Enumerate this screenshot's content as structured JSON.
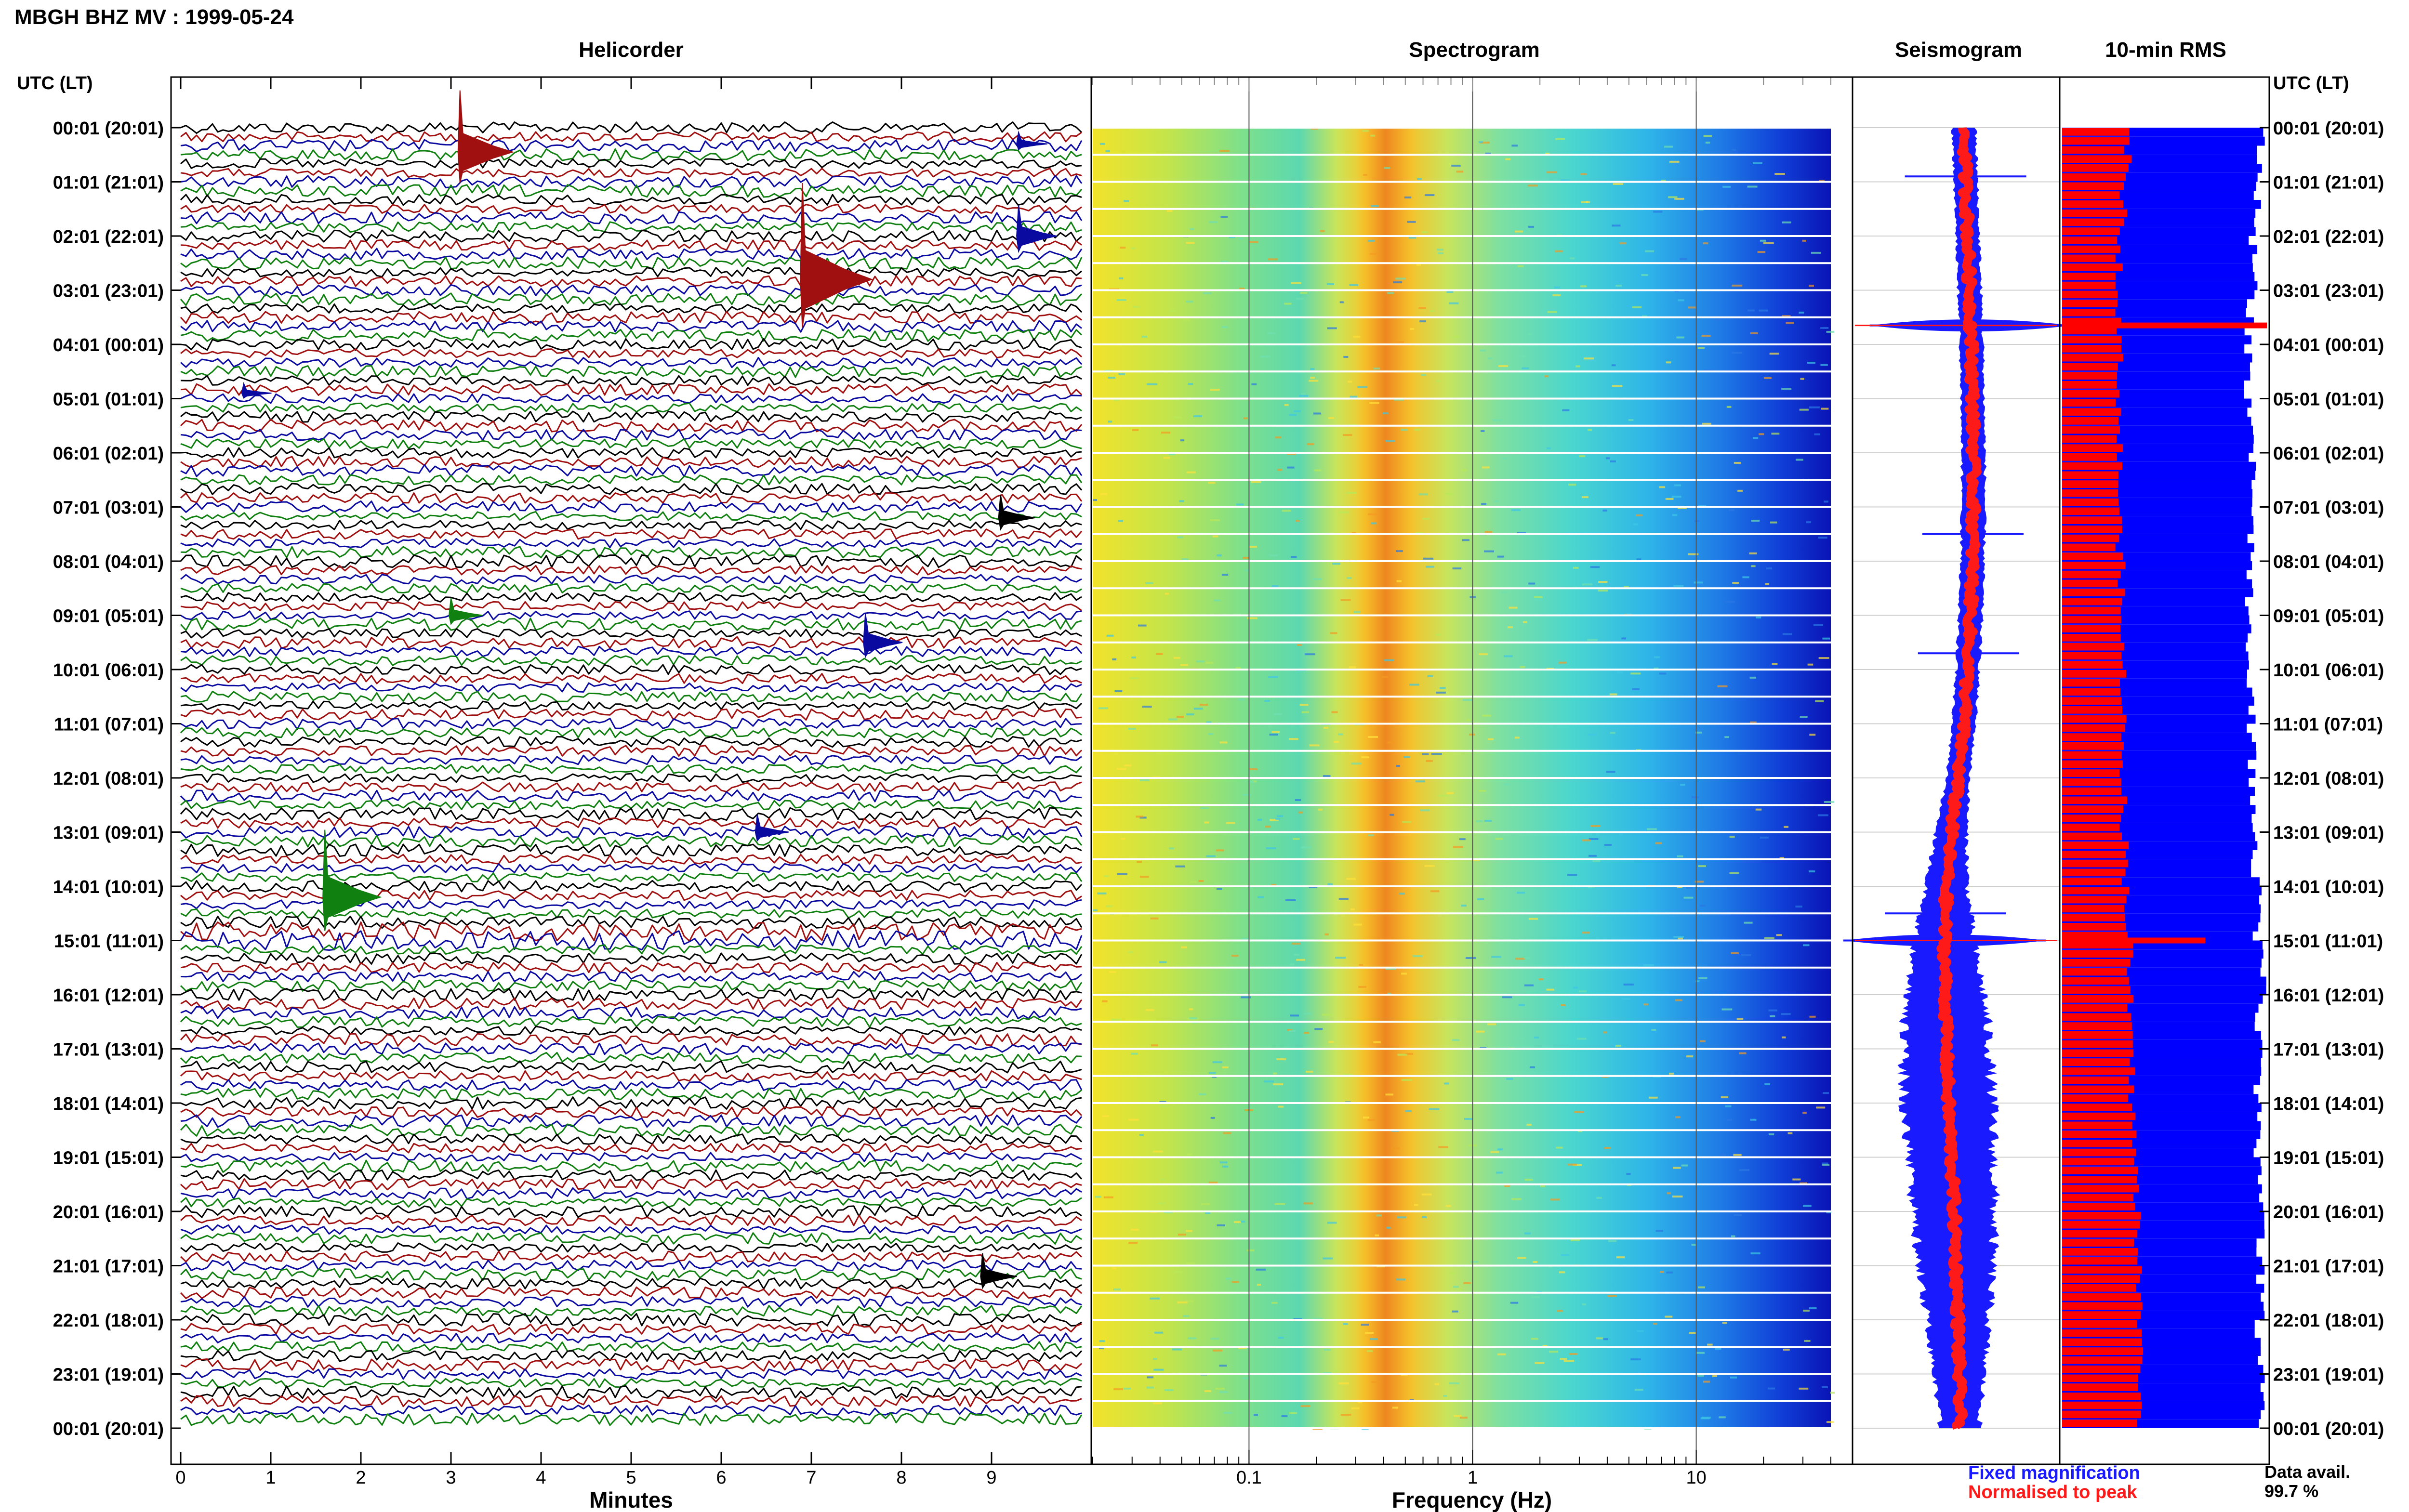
{
  "title": "MBGH BHZ MV : 1999-05-24",
  "panel_titles": {
    "helicorder": "Helicorder",
    "spectrogram": "Spectrogram",
    "seismogram": "Seismogram",
    "rms": "10-min RMS"
  },
  "axis_headers": {
    "left": "UTC (LT)",
    "right": "UTC (LT)"
  },
  "time_labels": [
    "00:01 (20:01)",
    "01:01 (21:01)",
    "02:01 (22:01)",
    "03:01 (23:01)",
    "04:01 (00:01)",
    "05:01 (01:01)",
    "06:01 (02:01)",
    "07:01 (03:01)",
    "08:01 (04:01)",
    "09:01 (05:01)",
    "10:01 (06:01)",
    "11:01 (07:01)",
    "12:01 (08:01)",
    "13:01 (09:01)",
    "14:01 (10:01)",
    "15:01 (11:01)",
    "16:01 (12:01)",
    "17:01 (13:01)",
    "18:01 (14:01)",
    "19:01 (15:01)",
    "20:01 (16:01)",
    "21:01 (17:01)",
    "22:01 (18:01)",
    "23:01 (19:01)",
    "00:01 (20:01)"
  ],
  "legend": {
    "fixed": "Fixed magnification",
    "normalised": "Normalised to peak",
    "fixed_color": "#1a1aff",
    "normalised_color": "#ff1a1a"
  },
  "data_avail": {
    "label": "Data avail.",
    "value": "99.7 %"
  },
  "colors": {
    "trace_cycle": [
      "#000000",
      "#a01010",
      "#0a0aa0",
      "#108010"
    ],
    "blue": "#0000ff",
    "red": "#ff0000"
  },
  "chart_data": [
    {
      "type": "line",
      "panel": "helicorder",
      "xlabel": "Minutes",
      "xlim": [
        0,
        10
      ],
      "x_ticks": [
        "0",
        "1",
        "2",
        "3",
        "4",
        "5",
        "6",
        "7",
        "8",
        "9"
      ],
      "rows_per_hour": 6,
      "hours": 24,
      "events": [
        {
          "hour": 0.45,
          "minute": 3.1,
          "amp": 3.2,
          "color": "#a01010"
        },
        {
          "hour": 0.3,
          "minute": 9.3,
          "amp": 0.6,
          "color": "#0a0aa0"
        },
        {
          "hour": 2.0,
          "minute": 9.3,
          "amp": 1.6,
          "color": "#0a0aa0"
        },
        {
          "hour": 2.8,
          "minute": 6.9,
          "amp": 5.0,
          "color": "#a01010"
        },
        {
          "hour": 4.9,
          "minute": 0.7,
          "amp": 0.5,
          "color": "#0a0aa0"
        },
        {
          "hour": 7.2,
          "minute": 9.1,
          "amp": 1.2,
          "color": "#000000"
        },
        {
          "hour": 9.0,
          "minute": 3.0,
          "amp": 0.9,
          "color": "#108010"
        },
        {
          "hour": 9.5,
          "minute": 7.6,
          "amp": 1.5,
          "color": "#0a0aa0"
        },
        {
          "hour": 13.0,
          "minute": 6.4,
          "amp": 0.9,
          "color": "#0a0aa0"
        },
        {
          "hour": 14.2,
          "minute": 1.6,
          "amp": 3.5,
          "color": "#108010"
        },
        {
          "hour": 21.2,
          "minute": 8.9,
          "amp": 1.2,
          "color": "#000000"
        }
      ]
    },
    {
      "type": "heatmap",
      "panel": "spectrogram",
      "xlabel": "Frequency (Hz)",
      "x_scale": "log",
      "xlim": [
        0.02,
        50
      ],
      "x_ticks": [
        0.1,
        1,
        10
      ],
      "x_tick_labels": [
        "0.1",
        "1",
        "10"
      ],
      "peak_band_hz": [
        0.3,
        0.55
      ],
      "max_freq_hz": 40
    },
    {
      "type": "area",
      "panel": "seismogram",
      "series": [
        {
          "name": "Fixed magnification",
          "color": "#1a1aff"
        },
        {
          "name": "Normalised to peak",
          "color": "#ff1a1a"
        }
      ],
      "hours": [
        0,
        1,
        2,
        3,
        4,
        5,
        6,
        7,
        8,
        9,
        10,
        11,
        12,
        13,
        14,
        15,
        16,
        17,
        18,
        19,
        20,
        21,
        22,
        23,
        24
      ],
      "center_offset": [
        0.08,
        0.1,
        0.12,
        0.14,
        0.16,
        0.17,
        0.18,
        0.18,
        0.17,
        0.15,
        0.12,
        0.08,
        0.02,
        -0.05,
        -0.1,
        -0.12,
        -0.11,
        -0.1,
        -0.08,
        -0.05,
        -0.02,
        0.0,
        0.02,
        0.03,
        0.04
      ],
      "half_width": [
        0.12,
        0.12,
        0.12,
        0.12,
        0.12,
        0.12,
        0.12,
        0.12,
        0.12,
        0.12,
        0.12,
        0.12,
        0.12,
        0.16,
        0.22,
        0.3,
        0.4,
        0.45,
        0.46,
        0.44,
        0.42,
        0.38,
        0.32,
        0.26,
        0.2
      ],
      "spikes": [
        {
          "hour": 0.9,
          "amp": 0.6
        },
        {
          "hour": 3.65,
          "amp": 1.0
        },
        {
          "hour": 7.5,
          "amp": 0.5
        },
        {
          "hour": 9.7,
          "amp": 0.5
        },
        {
          "hour": 14.5,
          "amp": 0.6
        },
        {
          "hour": 15.0,
          "amp": 1.0
        }
      ]
    },
    {
      "type": "bar",
      "panel": "rms",
      "series": [
        {
          "name": "Fixed magnification",
          "color": "#0000ff"
        },
        {
          "name": "Normalised to peak",
          "color": "#ff0000"
        }
      ],
      "fixed_hourly": [
        1.0,
        0.98,
        0.96,
        0.94,
        0.93,
        0.94,
        0.95,
        0.95,
        0.94,
        0.94,
        0.95,
        0.95,
        0.96,
        0.97,
        0.98,
        1.0,
        0.98,
        0.98,
        0.98,
        0.99,
        0.99,
        0.99,
        0.99,
        0.99
      ],
      "normalised_hourly": [
        0.32,
        0.3,
        0.28,
        0.28,
        0.28,
        0.28,
        0.28,
        0.28,
        0.29,
        0.29,
        0.3,
        0.3,
        0.3,
        0.31,
        0.32,
        0.33,
        0.33,
        0.34,
        0.35,
        0.36,
        0.37,
        0.38,
        0.38,
        0.38
      ],
      "spikes": [
        {
          "hour": 3.65,
          "value": 1.0
        },
        {
          "hour": 15.0,
          "value": 0.7
        }
      ]
    }
  ]
}
